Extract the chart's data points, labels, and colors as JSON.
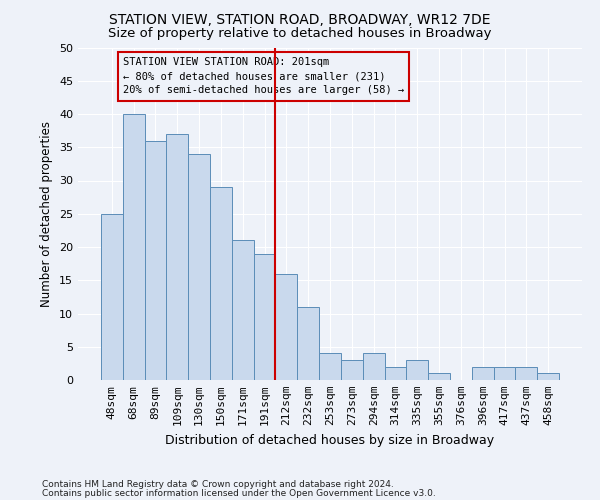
{
  "title1": "STATION VIEW, STATION ROAD, BROADWAY, WR12 7DE",
  "title2": "Size of property relative to detached houses in Broadway",
  "xlabel": "Distribution of detached houses by size in Broadway",
  "ylabel": "Number of detached properties",
  "footnote1": "Contains HM Land Registry data © Crown copyright and database right 2024.",
  "footnote2": "Contains public sector information licensed under the Open Government Licence v3.0.",
  "bar_labels": [
    "48sqm",
    "68sqm",
    "89sqm",
    "109sqm",
    "130sqm",
    "150sqm",
    "171sqm",
    "191sqm",
    "212sqm",
    "232sqm",
    "253sqm",
    "273sqm",
    "294sqm",
    "314sqm",
    "335sqm",
    "355sqm",
    "376sqm",
    "396sqm",
    "417sqm",
    "437sqm",
    "458sqm"
  ],
  "bar_values": [
    25,
    40,
    36,
    37,
    34,
    29,
    21,
    19,
    16,
    11,
    4,
    3,
    4,
    2,
    3,
    1,
    0,
    2,
    2,
    2,
    1
  ],
  "bar_color": "#c9d9ed",
  "bar_edge_color": "#5b8db8",
  "vline_x": 7.5,
  "vline_color": "#cc0000",
  "annotation_line1": "STATION VIEW STATION ROAD: 201sqm",
  "annotation_line2": "← 80% of detached houses are smaller (231)",
  "annotation_line3": "20% of semi-detached houses are larger (58) →",
  "annotation_box_color": "#cc0000",
  "ylim": [
    0,
    50
  ],
  "yticks": [
    0,
    5,
    10,
    15,
    20,
    25,
    30,
    35,
    40,
    45,
    50
  ],
  "background_color": "#eef2f9",
  "grid_color": "#ffffff",
  "title1_fontsize": 10,
  "title2_fontsize": 9.5,
  "xlabel_fontsize": 9,
  "ylabel_fontsize": 8.5,
  "tick_fontsize": 8,
  "annotation_fontsize": 7.5,
  "footnote_fontsize": 6.5
}
